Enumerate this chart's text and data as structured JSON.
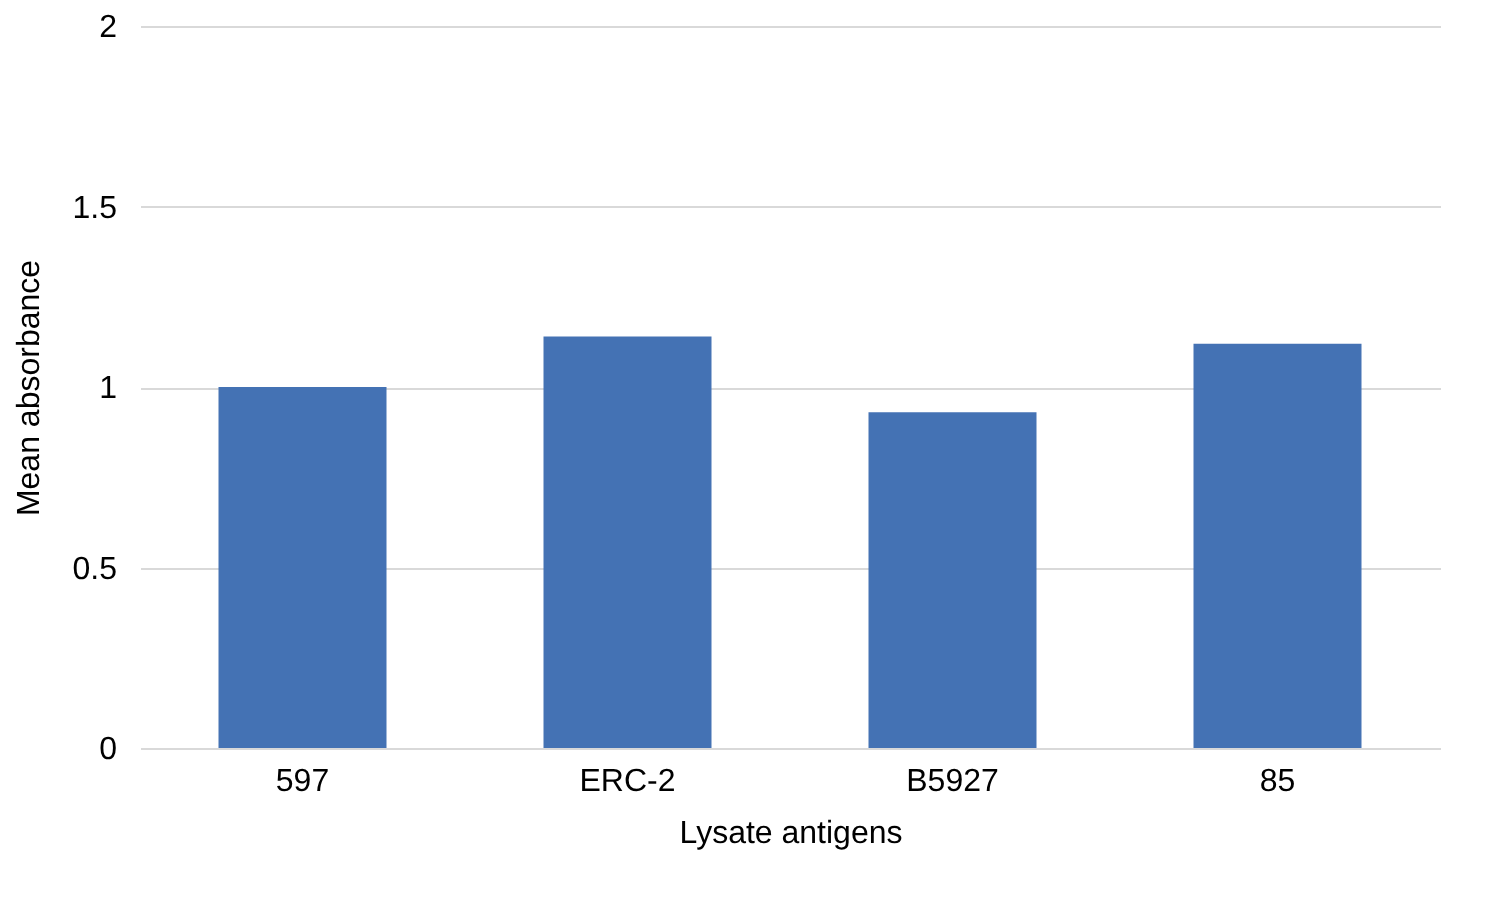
{
  "chart_data": {
    "type": "bar",
    "xlabel": "Lysate antigens",
    "ylabel": "Mean absorbance",
    "categories": [
      "597",
      "ERC-2",
      "B5927",
      "85"
    ],
    "values": [
      1.0,
      1.14,
      0.93,
      1.12
    ],
    "color": "#4472b4",
    "ylim": [
      0,
      2
    ],
    "yticks": [
      0,
      {
        "value": 0.5,
        "label": "0.5"
      },
      1,
      {
        "value": 1.5,
        "label": "1.5"
      },
      2
    ],
    "grid": "y"
  }
}
